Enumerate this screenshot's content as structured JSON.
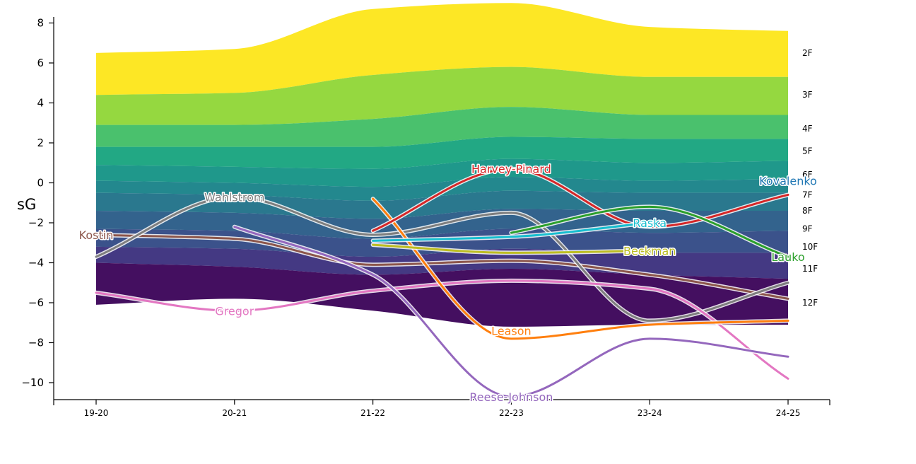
{
  "chart_data": {
    "type": "area",
    "xlabel": "",
    "ylabel": "sG",
    "ylim": [
      -10.8,
      8.3
    ],
    "yticks": [
      8,
      6,
      4,
      2,
      0,
      -2,
      -4,
      -6,
      -8,
      -10
    ],
    "categories": [
      "19-20",
      "20-21",
      "21-22",
      "22-23",
      "23-24",
      "24-25"
    ],
    "band_boundaries": [
      [
        6.5,
        6.7,
        8.7,
        9.0,
        7.8,
        7.6
      ],
      [
        4.4,
        4.5,
        5.4,
        5.8,
        5.3,
        5.3
      ],
      [
        2.9,
        2.9,
        3.2,
        3.8,
        3.4,
        3.4
      ],
      [
        1.8,
        1.8,
        1.8,
        2.3,
        2.2,
        2.2
      ],
      [
        0.9,
        0.8,
        0.7,
        1.2,
        1.0,
        1.1
      ],
      [
        0.1,
        0.0,
        -0.2,
        0.3,
        0.1,
        0.2
      ],
      [
        -0.5,
        -0.6,
        -0.9,
        -0.4,
        -0.5,
        -0.5
      ],
      [
        -1.4,
        -1.5,
        -1.8,
        -1.3,
        -1.4,
        -1.4
      ],
      [
        -2.3,
        -2.4,
        -2.8,
        -2.3,
        -2.5,
        -2.4
      ],
      [
        -3.2,
        -3.3,
        -3.7,
        -3.3,
        -3.5,
        -3.5
      ],
      [
        -4.0,
        -4.2,
        -4.6,
        -4.3,
        -4.6,
        -4.8
      ],
      [
        -6.1,
        -5.8,
        -6.4,
        -7.2,
        -7.1,
        -7.1
      ]
    ],
    "bands": [
      {
        "label": "2F",
        "color": "#fde725"
      },
      {
        "label": "3F",
        "color": "#95d840"
      },
      {
        "label": "4F",
        "color": "#4ac16d"
      },
      {
        "label": "5F",
        "color": "#22a884"
      },
      {
        "label": "6F",
        "color": "#1f988b"
      },
      {
        "label": "7F",
        "color": "#23888e"
      },
      {
        "label": "8F",
        "color": "#2a788e"
      },
      {
        "label": "9F",
        "color": "#33638d"
      },
      {
        "label": "10F",
        "color": "#3b528b"
      },
      {
        "label": "11F",
        "color": "#443983"
      },
      {
        "label": "12F",
        "color": "#440f60"
      }
    ],
    "band_label_y": [
      6.5,
      4.4,
      2.7,
      1.6,
      0.4,
      -0.6,
      -1.4,
      -2.3,
      -3.2,
      -4.3,
      -6.0
    ],
    "series": [
      {
        "name": "Kostin",
        "color": "#8c564b",
        "x": [
          "19-20",
          "20-21",
          "21-22",
          "22-23",
          "23-24",
          "24-25"
        ],
        "y": [
          -2.6,
          -2.8,
          -4.1,
          -3.9,
          -4.6,
          -5.8
        ],
        "label_y": -2.6
      },
      {
        "name": "Wahlstrom",
        "color": "#7f7f7f",
        "x": [
          "19-20",
          "20-21",
          "21-22",
          "22-23",
          "23-24",
          "24-25"
        ],
        "y": [
          -3.7,
          -0.7,
          -2.6,
          -1.5,
          -6.9,
          -5.0
        ],
        "label_y": -0.7
      },
      {
        "name": "Gregor",
        "color": "#e377c2",
        "x": [
          "19-20",
          "20-21",
          "21-22",
          "22-23",
          "23-24",
          "24-25"
        ],
        "y": [
          -5.5,
          -6.4,
          -5.4,
          -4.9,
          -5.3,
          -9.8
        ],
        "label_y": -6.4
      },
      {
        "name": "Reese-Johnson",
        "color": "#9467bd",
        "x": [
          "20-21",
          "21-22",
          "22-23",
          "23-24",
          "24-25"
        ],
        "y": [
          -2.2,
          -4.6,
          -10.7,
          -7.8,
          -8.7
        ],
        "label_y": -10.7
      },
      {
        "name": "Leason",
        "color": "#ff7f0e",
        "x": [
          "21-22",
          "22-23",
          "23-24",
          "24-25"
        ],
        "y": [
          -0.8,
          -7.8,
          -7.1,
          -6.9
        ],
        "label_y": -7.4
      },
      {
        "name": "Harvey-Pinard",
        "color": "#d62728",
        "x": [
          "21-22",
          "22-23",
          "23-24",
          "24-25"
        ],
        "y": [
          -2.4,
          0.7,
          -2.2,
          -0.6
        ],
        "label_y": 0.7
      },
      {
        "name": "Raska",
        "color": "#17becf",
        "x": [
          "21-22",
          "22-23",
          "23-24"
        ],
        "y": [
          -2.9,
          -2.7,
          -2.0
        ],
        "label_y": -2.0
      },
      {
        "name": "Beckman",
        "color": "#bcbd22",
        "x": [
          "21-22",
          "22-23",
          "23-24"
        ],
        "y": [
          -3.1,
          -3.5,
          -3.4
        ],
        "label_y": -3.4
      },
      {
        "name": "Lauko",
        "color": "#2ca02c",
        "x": [
          "22-23",
          "23-24",
          "24-25"
        ],
        "y": [
          -2.5,
          -1.2,
          -3.7
        ],
        "label_y": -3.7
      },
      {
        "name": "Kovalenko",
        "color": "#1f77b4",
        "x": [
          "24-25"
        ],
        "y": [
          0.1
        ],
        "label_y": 0.1
      }
    ]
  }
}
